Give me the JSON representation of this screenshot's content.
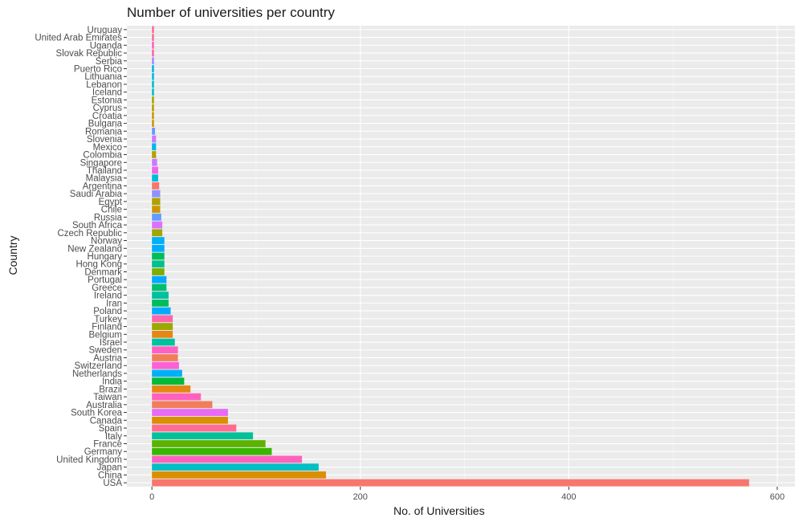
{
  "chart_data": {
    "type": "bar",
    "orientation": "horizontal",
    "title": "Number of universities per country",
    "xlabel": "No. of Universities",
    "ylabel": "Country",
    "xlim": [
      0,
      600
    ],
    "x_ticks": [
      0,
      200,
      400,
      600
    ],
    "grid": true,
    "legend": "none",
    "categories": [
      "USA",
      "China",
      "Japan",
      "United Kingdom",
      "Germany",
      "France",
      "Italy",
      "Spain",
      "Canada",
      "South Korea",
      "Australia",
      "Taiwan",
      "Brazil",
      "India",
      "Netherlands",
      "Switzerland",
      "Austria",
      "Sweden",
      "Israel",
      "Belgium",
      "Finland",
      "Turkey",
      "Poland",
      "Iran",
      "Ireland",
      "Greece",
      "Portugal",
      "Denmark",
      "Hong Kong",
      "Hungary",
      "New Zealand",
      "Norway",
      "Czech Republic",
      "South Africa",
      "Russia",
      "Chile",
      "Egypt",
      "Saudi Arabia",
      "Argentina",
      "Malaysia",
      "Thailand",
      "Singapore",
      "Colombia",
      "Mexico",
      "Slovenia",
      "Romania",
      "Bulgaria",
      "Croatia",
      "Cyprus",
      "Estonia",
      "Iceland",
      "Lebanon",
      "Lithuania",
      "Puerto Rico",
      "Serbia",
      "Slovak Republic",
      "Uganda",
      "United Arab Emirates",
      "Uruguay"
    ],
    "values": [
      573,
      167,
      160,
      144,
      115,
      109,
      97,
      81,
      73,
      73,
      58,
      47,
      37,
      31,
      29,
      26,
      25,
      25,
      22,
      20,
      20,
      20,
      18,
      16,
      16,
      14,
      14,
      12,
      12,
      12,
      12,
      12,
      10,
      10,
      9,
      8,
      8,
      8,
      7,
      6,
      6,
      5,
      4,
      4,
      4,
      3,
      2,
      2,
      2,
      2,
      2,
      2,
      2,
      2,
      2,
      2,
      2,
      2,
      2
    ],
    "colors": [
      "#F8766D",
      "#DB8E00",
      "#00BFC4",
      "#FF62BC",
      "#39B600",
      "#5BB300",
      "#00C19A",
      "#FF6C91",
      "#DB8E00",
      "#E76BF3",
      "#F17E5A",
      "#FF62BC",
      "#E68613",
      "#00BA38",
      "#00B0F6",
      "#FC61D5",
      "#F17E5A",
      "#FF61C3",
      "#00C19F",
      "#E68613",
      "#9AA800",
      "#FF65AC",
      "#00ABFD",
      "#00BD5C",
      "#00BFA0",
      "#00BE70",
      "#00A9FF",
      "#7CAE00",
      "#00C08B",
      "#00BD5C",
      "#00ACFC",
      "#00B0F6",
      "#A3A500",
      "#D973FC",
      "#619CFF",
      "#CD9600",
      "#AEA200",
      "#8F91FF",
      "#F8766D",
      "#00BCD8",
      "#F066EA",
      "#C77CFF",
      "#B79F00",
      "#00B6EB",
      "#C77CFF",
      "#619CFF",
      "#D39200",
      "#C49A00",
      "#B79F00",
      "#A3A500",
      "#00BFC4",
      "#00BFC4",
      "#00BCD8",
      "#00B6EB",
      "#A58AFF",
      "#FF67A4",
      "#FF61C3",
      "#FF6C91",
      "#FF6C91"
    ]
  }
}
